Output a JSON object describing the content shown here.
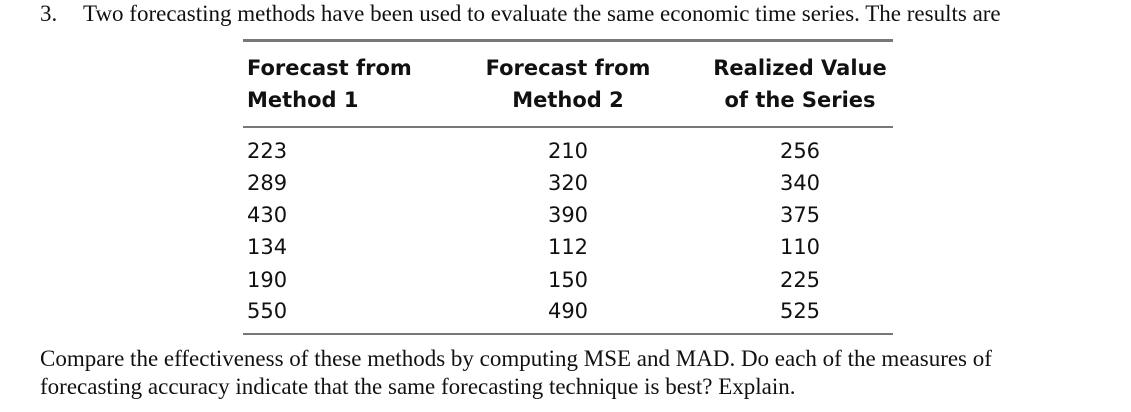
{
  "question": {
    "number": "3.",
    "text": "Two forecasting methods have been used to evaluate the same economic time series. The results are"
  },
  "table": {
    "headers": [
      [
        "Forecast from",
        "Method 1"
      ],
      [
        "Forecast from",
        "Method 2"
      ],
      [
        "Realized Value",
        "of the Series"
      ]
    ],
    "rows": [
      [
        223,
        210,
        256
      ],
      [
        289,
        320,
        340
      ],
      [
        430,
        390,
        375
      ],
      [
        134,
        112,
        110
      ],
      [
        190,
        150,
        225
      ],
      [
        550,
        490,
        525
      ]
    ]
  },
  "prompt": [
    "Compare the effectiveness of these methods by computing MSE and MAD. Do each of the measures of",
    "forecasting accuracy indicate that the same forecasting technique is best? Explain."
  ]
}
